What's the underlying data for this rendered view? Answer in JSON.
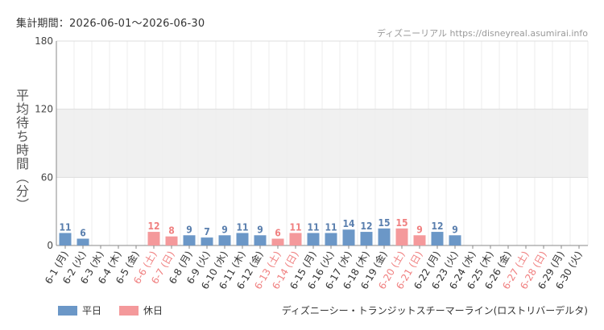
{
  "header": {
    "period_label": "集計期間：2026-06-01〜2026-06-30",
    "source_name": "ディズニーリアル",
    "source_url": "https://disneyreal.asumirai.info"
  },
  "footer": {
    "attraction_title": "ディズニーシー・トランジットスチーマーライン(ロストリバーデルタ)"
  },
  "colors": {
    "weekday": "#6b97c7",
    "holiday": "#f4999b",
    "weekday_label": "#5a7fae",
    "holiday_label": "#f08080",
    "band": "#f0f0f0",
    "grid": "#dddddd"
  },
  "chart_data": {
    "type": "bar",
    "ylabel": "平均待ち時間（分）",
    "ylim": [
      0,
      180
    ],
    "yticks": [
      0,
      60,
      120,
      180
    ],
    "shaded_band": [
      60,
      120
    ],
    "legend": [
      {
        "key": "weekday",
        "label": "平日"
      },
      {
        "key": "holiday",
        "label": "休日"
      }
    ],
    "categories": [
      "6-1 (月)",
      "6-2 (火)",
      "6-3 (水)",
      "6-4 (木)",
      "6-5 (金)",
      "6-6 (土)",
      "6-7 (日)",
      "6-8 (月)",
      "6-9 (火)",
      "6-10 (水)",
      "6-11 (木)",
      "6-12 (金)",
      "6-13 (土)",
      "6-14 (日)",
      "6-15 (月)",
      "6-16 (火)",
      "6-17 (水)",
      "6-18 (木)",
      "6-19 (金)",
      "6-20 (土)",
      "6-21 (日)",
      "6-22 (月)",
      "6-23 (火)",
      "6-24 (水)",
      "6-25 (木)",
      "6-26 (金)",
      "6-27 (土)",
      "6-28 (日)",
      "6-29 (月)",
      "6-30 (火)"
    ],
    "day_type": [
      "weekday",
      "weekday",
      "weekday",
      "weekday",
      "weekday",
      "holiday",
      "holiday",
      "weekday",
      "weekday",
      "weekday",
      "weekday",
      "weekday",
      "holiday",
      "holiday",
      "weekday",
      "weekday",
      "weekday",
      "weekday",
      "weekday",
      "holiday",
      "holiday",
      "weekday",
      "weekday",
      "weekday",
      "weekday",
      "weekday",
      "holiday",
      "holiday",
      "weekday",
      "weekday"
    ],
    "values": [
      11,
      6,
      null,
      null,
      null,
      12,
      8,
      9,
      7,
      9,
      11,
      9,
      6,
      11,
      11,
      11,
      14,
      12,
      15,
      15,
      9,
      12,
      9,
      null,
      null,
      null,
      null,
      null,
      null,
      null
    ]
  }
}
